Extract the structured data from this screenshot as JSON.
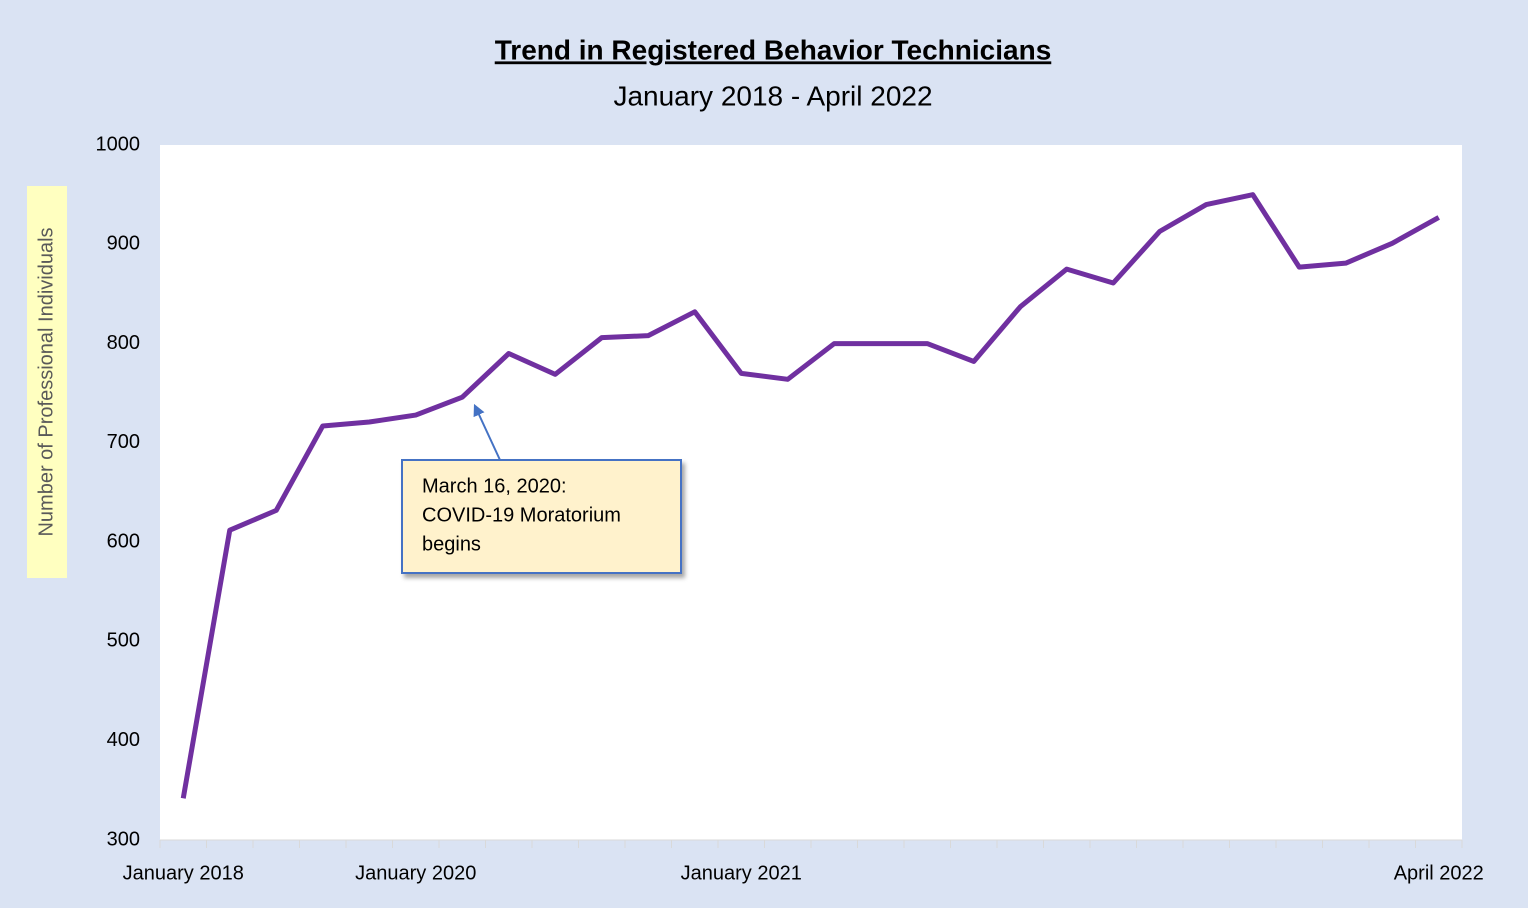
{
  "chart_data": {
    "type": "line",
    "title": "Trend in Registered Behavior Technicians",
    "subtitle": "January 2018 - April 2022",
    "y_label": "Number of Professional Individuals",
    "categories": [
      "January 2018",
      null,
      null,
      null,
      null,
      "January 2020",
      null,
      null,
      null,
      null,
      null,
      null,
      "January 2021",
      null,
      null,
      null,
      null,
      null,
      null,
      null,
      null,
      null,
      null,
      null,
      null,
      null,
      null,
      "April 2022"
    ],
    "series": [
      {
        "name": "Registered Behavior Technicians",
        "color": "#7030a0",
        "values": [
          342,
          612,
          632,
          717,
          721,
          728,
          746,
          790,
          769,
          806,
          808,
          832,
          770,
          764,
          800,
          800,
          800,
          782,
          837,
          875,
          861,
          913,
          940,
          950,
          877,
          881,
          901,
          927
        ]
      }
    ],
    "ylim": [
      300,
      1000
    ],
    "yticks": [
      300,
      400,
      500,
      600,
      700,
      800,
      900,
      1000
    ],
    "annotation": [
      "March 16, 2020:",
      "COVID-19 Moratorium",
      "begins"
    ]
  }
}
